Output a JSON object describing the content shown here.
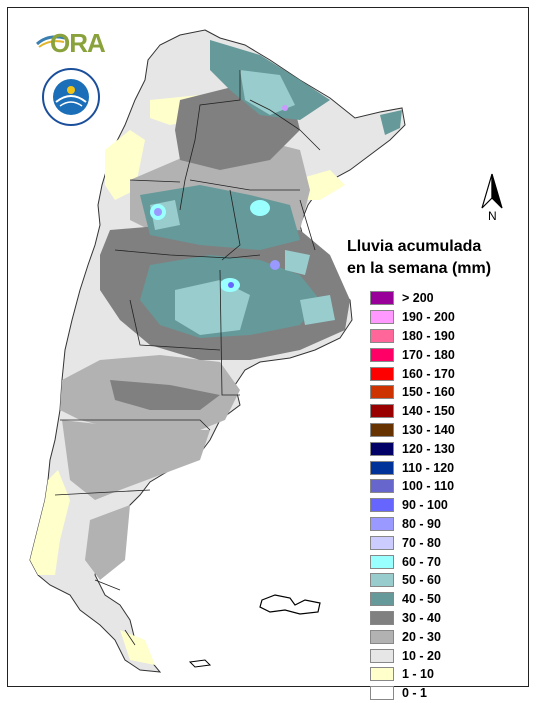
{
  "logo": {
    "text": "ORA"
  },
  "seal": {
    "text": "SERVICIO METEOROLOGICO NACIONAL ARGENTINA"
  },
  "north": {
    "label": "N"
  },
  "legend": {
    "title_line1": "Lluvia acumulada",
    "title_line2": "en la semana (mm)",
    "items": [
      {
        "label": "> 200",
        "color": "#990099"
      },
      {
        "label": "190 - 200",
        "color": "#ff99ff"
      },
      {
        "label": "180 - 190",
        "color": "#ff6699"
      },
      {
        "label": "170 - 180",
        "color": "#ff0066"
      },
      {
        "label": "160 - 170",
        "color": "#ff0000"
      },
      {
        "label": "150 - 160",
        "color": "#cc3300"
      },
      {
        "label": "140 - 150",
        "color": "#990000"
      },
      {
        "label": "130 - 140",
        "color": "#663300"
      },
      {
        "label": "120 - 130",
        "color": "#000066"
      },
      {
        "label": "110 - 120",
        "color": "#003399"
      },
      {
        "label": "100 - 110",
        "color": "#6666cc"
      },
      {
        "label": "90 - 100",
        "color": "#6666ff"
      },
      {
        "label": "80 - 90",
        "color": "#9999ff"
      },
      {
        "label": "70 - 80",
        "color": "#ccccff"
      },
      {
        "label": "60 - 70",
        "color": "#99ffff"
      },
      {
        "label": "50 - 60",
        "color": "#99cccc"
      },
      {
        "label": "40 - 50",
        "color": "#669999"
      },
      {
        "label": "30 - 40",
        "color": "#808080"
      },
      {
        "label": "20 - 30",
        "color": "#b2b2b2"
      },
      {
        "label": "10 - 20",
        "color": "#e6e6e6"
      },
      {
        "label": "1 - 10",
        "color": "#ffffcc"
      },
      {
        "label": "0 - 1",
        "color": "#ffffff"
      }
    ]
  }
}
